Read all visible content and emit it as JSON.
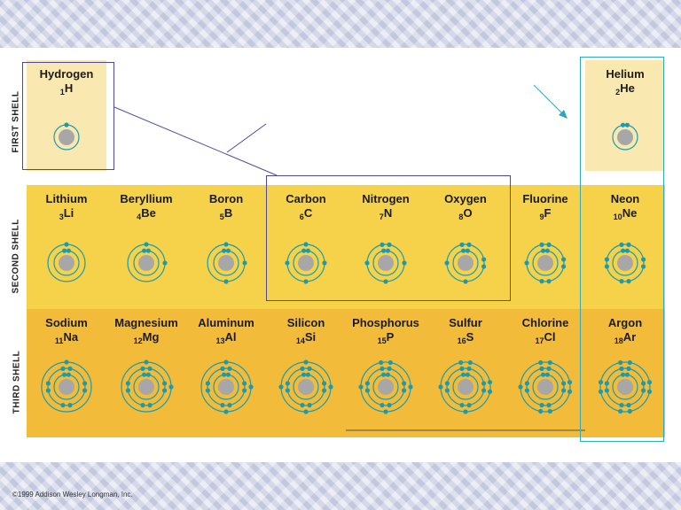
{
  "shell_labels": [
    "FIRST SHELL",
    "SECOND SHELL",
    "THIRD SHELL"
  ],
  "elements": [
    {
      "name": "Hydrogen",
      "number": "1",
      "symbol": "H",
      "shells": [
        1
      ]
    },
    {
      "name": "Helium",
      "number": "2",
      "symbol": "He",
      "shells": [
        2
      ]
    },
    {
      "name": "Lithium",
      "number": "3",
      "symbol": "Li",
      "shells": [
        2,
        1
      ]
    },
    {
      "name": "Beryllium",
      "number": "4",
      "symbol": "Be",
      "shells": [
        2,
        2
      ]
    },
    {
      "name": "Boron",
      "number": "5",
      "symbol": "B",
      "shells": [
        2,
        3
      ]
    },
    {
      "name": "Carbon",
      "number": "6",
      "symbol": "C",
      "shells": [
        2,
        4
      ]
    },
    {
      "name": "Nitrogen",
      "number": "7",
      "symbol": "N",
      "shells": [
        2,
        5
      ]
    },
    {
      "name": "Oxygen",
      "number": "8",
      "symbol": "O",
      "shells": [
        2,
        6
      ]
    },
    {
      "name": "Fluorine",
      "number": "9",
      "symbol": "F",
      "shells": [
        2,
        7
      ]
    },
    {
      "name": "Neon",
      "number": "10",
      "symbol": "Ne",
      "shells": [
        2,
        8
      ]
    },
    {
      "name": "Sodium",
      "number": "11",
      "symbol": "Na",
      "shells": [
        2,
        8,
        1
      ]
    },
    {
      "name": "Magnesium",
      "number": "12",
      "symbol": "Mg",
      "shells": [
        2,
        8,
        2
      ]
    },
    {
      "name": "Aluminum",
      "number": "13",
      "symbol": "Al",
      "shells": [
        2,
        8,
        3
      ]
    },
    {
      "name": "Silicon",
      "number": "14",
      "symbol": "Si",
      "shells": [
        2,
        8,
        4
      ]
    },
    {
      "name": "Phosphorus",
      "number": "15",
      "symbol": "P",
      "shells": [
        2,
        8,
        5
      ]
    },
    {
      "name": "Sulfur",
      "number": "16",
      "symbol": "S",
      "shells": [
        2,
        8,
        6
      ]
    },
    {
      "name": "Chlorine",
      "number": "17",
      "symbol": "Cl",
      "shells": [
        2,
        8,
        7
      ]
    },
    {
      "name": "Argon",
      "number": "18",
      "symbol": "Ar",
      "shells": [
        2,
        8,
        8
      ]
    }
  ],
  "copyright": "©1999 Addison Wesley Longman, Inc.",
  "colors": {
    "first_shell_bg": "#f9e9b0",
    "second_shell_bg": "#f5d24a",
    "third_shell_bg": "#f2bc3a",
    "electron": "#1d9bae",
    "orbit": "#1d9bae",
    "nucleus": "#a7a7a7",
    "highlight_box_purple": "#5a58a8",
    "highlight_box_teal": "#33aab5"
  }
}
